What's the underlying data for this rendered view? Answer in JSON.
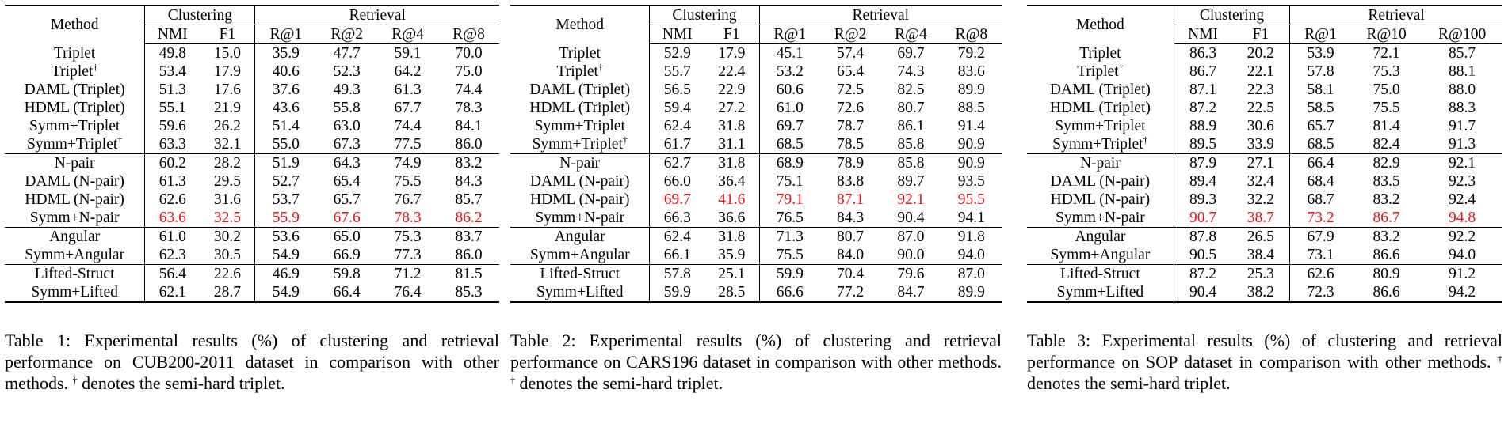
{
  "tables": [
    {
      "headers": {
        "method": "Method",
        "clustering": "Clustering",
        "retrieval": "Retrieval",
        "cols": [
          "NMI",
          "F1",
          "R@1",
          "R@2",
          "R@4",
          "R@8"
        ]
      },
      "groups": [
        [
          {
            "name": "Triplet",
            "dagger": false,
            "vals": [
              "49.8",
              "15.0",
              "35.9",
              "47.7",
              "59.1",
              "70.0"
            ],
            "style": [
              "",
              "",
              "",
              "",
              "",
              ""
            ]
          },
          {
            "name": "Triplet",
            "dagger": true,
            "vals": [
              "53.4",
              "17.9",
              "40.6",
              "52.3",
              "64.2",
              "75.0"
            ],
            "style": [
              "",
              "",
              "",
              "",
              "",
              ""
            ]
          },
          {
            "name": "DAML (Triplet)",
            "dagger": false,
            "vals": [
              "51.3",
              "17.6",
              "37.6",
              "49.3",
              "61.3",
              "74.4"
            ],
            "style": [
              "",
              "",
              "",
              "",
              "",
              ""
            ]
          },
          {
            "name": "HDML (Triplet)",
            "dagger": false,
            "vals": [
              "55.1",
              "21.9",
              "43.6",
              "55.8",
              "67.7",
              "78.3"
            ],
            "style": [
              "",
              "",
              "",
              "",
              "",
              ""
            ]
          },
          {
            "name": "Symm+Triplet",
            "dagger": false,
            "vals": [
              "59.6",
              "26.2",
              "51.4",
              "63.0",
              "74.4",
              "84.1"
            ],
            "style": [
              "",
              "",
              "",
              "",
              "",
              ""
            ]
          },
          {
            "name": "Symm+Triplet",
            "dagger": true,
            "vals": [
              "63.3",
              "32.1",
              "55.0",
              "67.3",
              "77.5",
              "86.0"
            ],
            "style": [
              "b",
              "b",
              "b",
              "b",
              "b",
              "b"
            ]
          }
        ],
        [
          {
            "name": "N-pair",
            "dagger": false,
            "vals": [
              "60.2",
              "28.2",
              "51.9",
              "64.3",
              "74.9",
              "83.2"
            ],
            "style": [
              "",
              "",
              "",
              "",
              "",
              ""
            ]
          },
          {
            "name": "DAML (N-pair)",
            "dagger": false,
            "vals": [
              "61.3",
              "29.5",
              "52.7",
              "65.4",
              "75.5",
              "84.3"
            ],
            "style": [
              "",
              "",
              "",
              "",
              "",
              ""
            ]
          },
          {
            "name": "HDML (N-pair)",
            "dagger": false,
            "vals": [
              "62.6",
              "31.6",
              "53.7",
              "65.7",
              "76.7",
              "85.7"
            ],
            "style": [
              "",
              "",
              "",
              "",
              "",
              ""
            ]
          },
          {
            "name": "Symm+N-pair",
            "dagger": false,
            "vals": [
              "63.6",
              "32.5",
              "55.9",
              "67.6",
              "78.3",
              "86.2"
            ],
            "style": [
              "r",
              "r",
              "r",
              "r",
              "r",
              "r"
            ]
          }
        ],
        [
          {
            "name": "Angular",
            "dagger": false,
            "vals": [
              "61.0",
              "30.2",
              "53.6",
              "65.0",
              "75.3",
              "83.7"
            ],
            "style": [
              "",
              "",
              "",
              "",
              "",
              ""
            ]
          },
          {
            "name": "Symm+Angular",
            "dagger": false,
            "vals": [
              "62.3",
              "30.5",
              "54.9",
              "66.9",
              "77.3",
              "86.0"
            ],
            "style": [
              "b",
              "b",
              "b",
              "b",
              "b",
              "b"
            ]
          }
        ],
        [
          {
            "name": "Lifted-Struct",
            "dagger": false,
            "vals": [
              "56.4",
              "22.6",
              "46.9",
              "59.8",
              "71.2",
              "81.5"
            ],
            "style": [
              "",
              "",
              "",
              "",
              "",
              ""
            ]
          },
          {
            "name": "Symm+Lifted",
            "dagger": false,
            "vals": [
              "62.1",
              "28.7",
              "54.9",
              "66.4",
              "76.4",
              "85.3"
            ],
            "style": [
              "b",
              "b",
              "b",
              "b",
              "b",
              "b"
            ]
          }
        ]
      ],
      "caption": {
        "label": "Table 1:",
        "text": "Experimental results (%) of clustering and retrieval performance on CUB200-2011 dataset in comparison with other methods.",
        "dagger_note": " denotes the semi-hard triplet."
      }
    },
    {
      "headers": {
        "method": "Method",
        "clustering": "Clustering",
        "retrieval": "Retrieval",
        "cols": [
          "NMI",
          "F1",
          "R@1",
          "R@2",
          "R@4",
          "R@8"
        ]
      },
      "groups": [
        [
          {
            "name": "Triplet",
            "dagger": false,
            "vals": [
              "52.9",
              "17.9",
              "45.1",
              "57.4",
              "69.7",
              "79.2"
            ],
            "style": [
              "",
              "",
              "",
              "",
              "",
              ""
            ]
          },
          {
            "name": "Triplet",
            "dagger": true,
            "vals": [
              "55.7",
              "22.4",
              "53.2",
              "65.4",
              "74.3",
              "83.6"
            ],
            "style": [
              "",
              "",
              "",
              "",
              "",
              ""
            ]
          },
          {
            "name": "DAML (Triplet)",
            "dagger": false,
            "vals": [
              "56.5",
              "22.9",
              "60.6",
              "72.5",
              "82.5",
              "89.9"
            ],
            "style": [
              "",
              "",
              "",
              "",
              "",
              ""
            ]
          },
          {
            "name": "HDML (Triplet)",
            "dagger": false,
            "vals": [
              "59.4",
              "27.2",
              "61.0",
              "72.6",
              "80.7",
              "88.5"
            ],
            "style": [
              "",
              "",
              "",
              "",
              "",
              ""
            ]
          },
          {
            "name": "Symm+Triplet",
            "dagger": false,
            "vals": [
              "62.4",
              "31.8",
              "69.7",
              "78.7",
              "86.1",
              "91.4"
            ],
            "style": [
              "b",
              "b",
              "b",
              "b",
              "b",
              "b"
            ]
          },
          {
            "name": "Symm+Triplet",
            "dagger": true,
            "vals": [
              "61.7",
              "31.1",
              "68.5",
              "78.5",
              "85.8",
              "90.9"
            ],
            "style": [
              "",
              "",
              "",
              "",
              "",
              ""
            ]
          }
        ],
        [
          {
            "name": "N-pair",
            "dagger": false,
            "vals": [
              "62.7",
              "31.8",
              "68.9",
              "78.9",
              "85.8",
              "90.9"
            ],
            "style": [
              "",
              "",
              "",
              "",
              "",
              ""
            ]
          },
          {
            "name": "DAML (N-pair)",
            "dagger": false,
            "vals": [
              "66.0",
              "36.4",
              "75.1",
              "83.8",
              "89.7",
              "93.5"
            ],
            "style": [
              "",
              "",
              "",
              "",
              "",
              ""
            ]
          },
          {
            "name": "HDML (N-pair)",
            "dagger": false,
            "vals": [
              "69.7",
              "41.6",
              "79.1",
              "87.1",
              "92.1",
              "95.5"
            ],
            "style": [
              "r",
              "r",
              "r",
              "r",
              "r",
              "r"
            ]
          },
          {
            "name": "Symm+N-pair",
            "dagger": false,
            "vals": [
              "66.3",
              "36.6",
              "76.5",
              "84.3",
              "90.4",
              "94.1"
            ],
            "style": [
              "",
              "",
              "",
              "",
              "",
              ""
            ]
          }
        ],
        [
          {
            "name": "Angular",
            "dagger": false,
            "vals": [
              "62.4",
              "31.8",
              "71.3",
              "80.7",
              "87.0",
              "91.8"
            ],
            "style": [
              "",
              "",
              "",
              "",
              "",
              ""
            ]
          },
          {
            "name": "Symm+Angular",
            "dagger": false,
            "vals": [
              "66.1",
              "35.9",
              "75.5",
              "84.0",
              "90.0",
              "94.0"
            ],
            "style": [
              "b",
              "b",
              "b",
              "b",
              "b",
              "b"
            ]
          }
        ],
        [
          {
            "name": "Lifted-Struct",
            "dagger": false,
            "vals": [
              "57.8",
              "25.1",
              "59.9",
              "70.4",
              "79.6",
              "87.0"
            ],
            "style": [
              "",
              "",
              "",
              "",
              "",
              ""
            ]
          },
          {
            "name": "Symm+Lifted",
            "dagger": false,
            "vals": [
              "59.9",
              "28.5",
              "66.6",
              "77.2",
              "84.7",
              "89.9"
            ],
            "style": [
              "b",
              "b",
              "b",
              "b",
              "b",
              "b"
            ]
          }
        ]
      ],
      "caption": {
        "label": "Table 2:",
        "text": "Experimental results (%) of clustering and retrieval performance on CARS196 dataset in comparison with other methods.",
        "dagger_note": " denotes the semi-hard triplet."
      }
    },
    {
      "headers": {
        "method": "Method",
        "clustering": "Clustering",
        "retrieval": "Retrieval",
        "cols": [
          "NMI",
          "F1",
          "R@1",
          "R@10",
          "R@100"
        ]
      },
      "groups": [
        [
          {
            "name": "Triplet",
            "dagger": false,
            "vals": [
              "86.3",
              "20.2",
              "53.9",
              "72.1",
              "85.7"
            ],
            "style": [
              "",
              "",
              "",
              "",
              ""
            ]
          },
          {
            "name": "Triplet",
            "dagger": true,
            "vals": [
              "86.7",
              "22.1",
              "57.8",
              "75.3",
              "88.1"
            ],
            "style": [
              "",
              "",
              "",
              "",
              ""
            ]
          },
          {
            "name": "DAML (Triplet)",
            "dagger": false,
            "vals": [
              "87.1",
              "22.3",
              "58.1",
              "75.0",
              "88.0"
            ],
            "style": [
              "",
              "",
              "",
              "",
              ""
            ]
          },
          {
            "name": "HDML (Triplet)",
            "dagger": false,
            "vals": [
              "87.2",
              "22.5",
              "58.5",
              "75.5",
              "88.3"
            ],
            "style": [
              "",
              "",
              "",
              "",
              ""
            ]
          },
          {
            "name": "Symm+Triplet",
            "dagger": false,
            "vals": [
              "88.9",
              "30.6",
              "65.7",
              "81.4",
              "91.7"
            ],
            "style": [
              "",
              "",
              "",
              "",
              ""
            ]
          },
          {
            "name": "Symm+Triplet",
            "dagger": true,
            "vals": [
              "89.5",
              "33.9",
              "68.5",
              "82.4",
              "91.3"
            ],
            "style": [
              "b",
              "b",
              "b",
              "b",
              "b"
            ]
          }
        ],
        [
          {
            "name": "N-pair",
            "dagger": false,
            "vals": [
              "87.9",
              "27.1",
              "66.4",
              "82.9",
              "92.1"
            ],
            "style": [
              "",
              "",
              "",
              "",
              ""
            ]
          },
          {
            "name": "DAML (N-pair)",
            "dagger": false,
            "vals": [
              "89.4",
              "32.4",
              "68.4",
              "83.5",
              "92.3"
            ],
            "style": [
              "",
              "",
              "",
              "",
              ""
            ]
          },
          {
            "name": "HDML (N-pair)",
            "dagger": false,
            "vals": [
              "89.3",
              "32.2",
              "68.7",
              "83.2",
              "92.4"
            ],
            "style": [
              "",
              "",
              "",
              "",
              ""
            ]
          },
          {
            "name": "Symm+N-pair",
            "dagger": false,
            "vals": [
              "90.7",
              "38.7",
              "73.2",
              "86.7",
              "94.8"
            ],
            "style": [
              "r",
              "r",
              "r",
              "r",
              "r"
            ]
          }
        ],
        [
          {
            "name": "Angular",
            "dagger": false,
            "vals": [
              "87.8",
              "26.5",
              "67.9",
              "83.2",
              "92.2"
            ],
            "style": [
              "",
              "",
              "",
              "",
              ""
            ]
          },
          {
            "name": "Symm+Angular",
            "dagger": false,
            "vals": [
              "90.5",
              "38.4",
              "73.1",
              "86.6",
              "94.0"
            ],
            "style": [
              "b",
              "b",
              "b",
              "b",
              "b"
            ]
          }
        ],
        [
          {
            "name": "Lifted-Struct",
            "dagger": false,
            "vals": [
              "87.2",
              "25.3",
              "62.6",
              "80.9",
              "91.2"
            ],
            "style": [
              "",
              "",
              "",
              "",
              ""
            ]
          },
          {
            "name": "Symm+Lifted",
            "dagger": false,
            "vals": [
              "90.4",
              "38.2",
              "72.3",
              "86.6",
              "94.2"
            ],
            "style": [
              "b",
              "b",
              "b",
              "b",
              "b"
            ]
          }
        ]
      ],
      "caption": {
        "label": "Table 3:",
        "text": "Experimental results (%) of clustering and retrieval performance on SOP dataset in comparison with other methods.",
        "dagger_note": " denotes the semi-hard triplet."
      }
    }
  ]
}
